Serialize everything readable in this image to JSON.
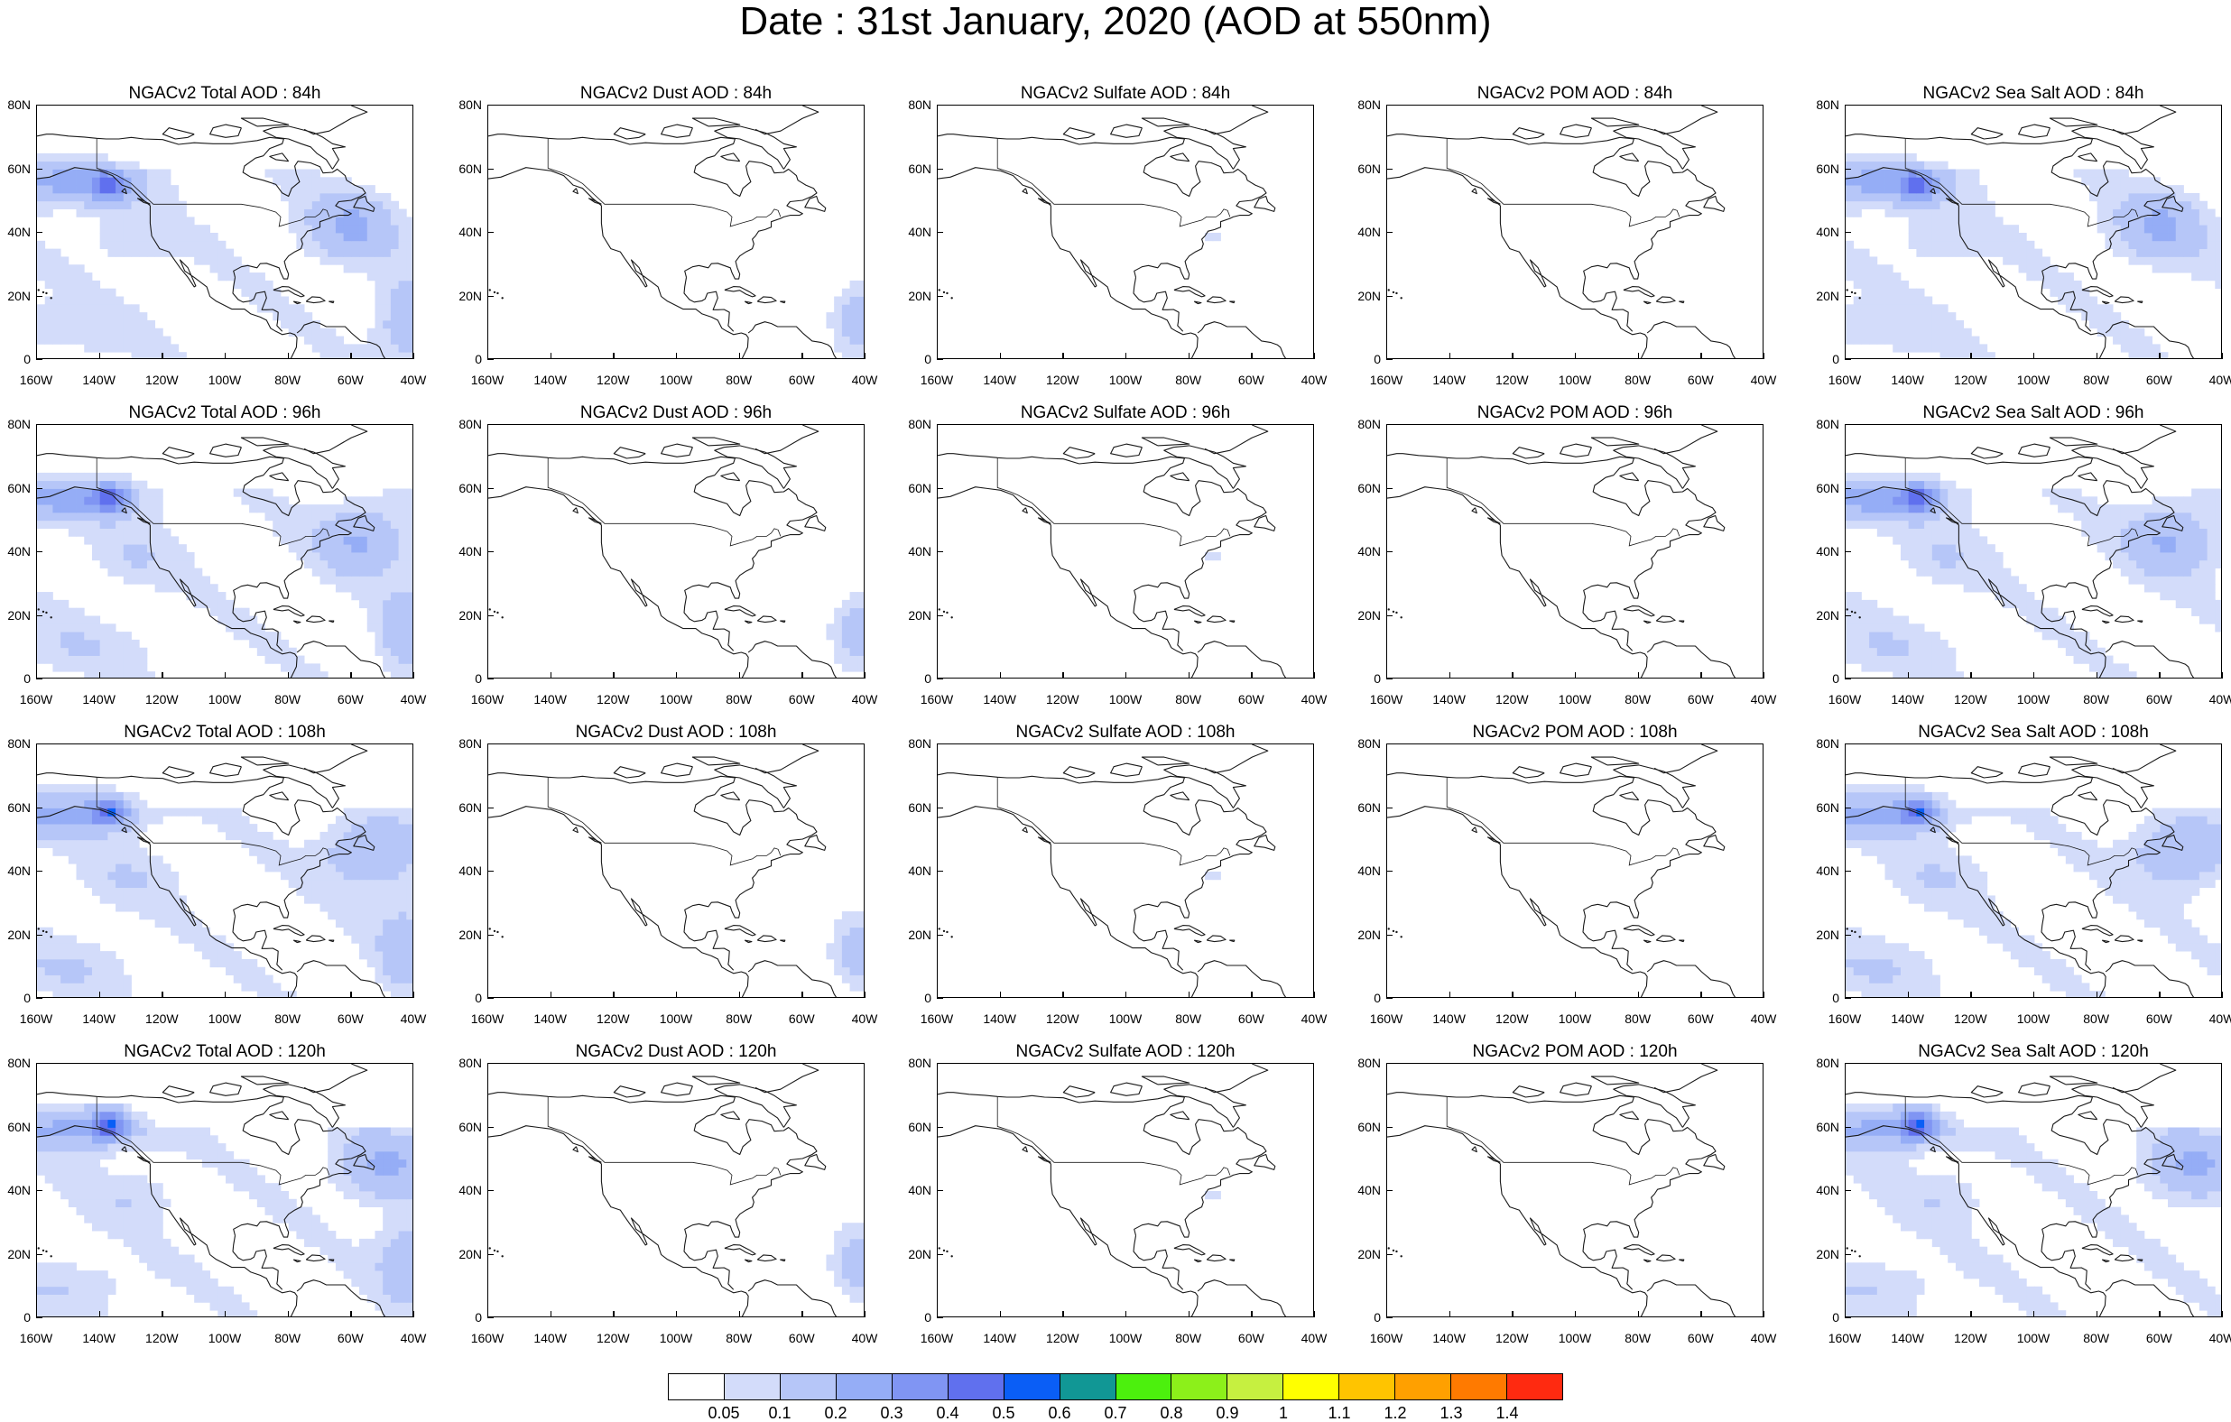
{
  "title": "Date : 31st January, 2020 (AOD at 550nm)",
  "colors": {
    "land_outline": "#1a1a1a",
    "shading": [
      "#ffffff",
      "#d3dcfa",
      "#b6c6f8",
      "#95adf6",
      "#8095f3",
      "#6070ee",
      "#0a5ef6",
      "#119795",
      "#4cf00d",
      "#8cf01a",
      "#c6f040",
      "#ffff00",
      "#ffc400",
      "#ffa000",
      "#ff7a00",
      "#ff2a10"
    ]
  },
  "axes": {
    "y_labels": [
      "80N",
      "60N",
      "40N",
      "20N",
      "0"
    ],
    "x_labels": [
      "160W",
      "140W",
      "120W",
      "100W",
      "80W",
      "60W",
      "40W"
    ],
    "lat_range": [
      0,
      80
    ],
    "lon_range": [
      -160,
      -40
    ]
  },
  "legend": {
    "labels": [
      "0.05",
      "0.1",
      "0.2",
      "0.3",
      "0.4",
      "0.5",
      "0.6",
      "0.7",
      "0.8",
      "0.9",
      "1",
      "1.1",
      "1.2",
      "1.3",
      "1.4"
    ]
  },
  "panels": [
    {
      "title": "NGACv2 Total AOD : 84h",
      "field": "total",
      "hour": 84
    },
    {
      "title": "NGACv2 Dust AOD : 84h",
      "field": "dust",
      "hour": 84
    },
    {
      "title": "NGACv2 Sulfate AOD : 84h",
      "field": "sulfate",
      "hour": 84
    },
    {
      "title": "NGACv2 POM AOD : 84h",
      "field": "pom",
      "hour": 84
    },
    {
      "title": "NGACv2 Sea Salt AOD : 84h",
      "field": "seasalt",
      "hour": 84
    },
    {
      "title": "NGACv2 Total AOD : 96h",
      "field": "total",
      "hour": 96
    },
    {
      "title": "NGACv2 Dust AOD : 96h",
      "field": "dust",
      "hour": 96
    },
    {
      "title": "NGACv2 Sulfate AOD : 96h",
      "field": "sulfate",
      "hour": 96
    },
    {
      "title": "NGACv2 POM AOD : 96h",
      "field": "pom",
      "hour": 96
    },
    {
      "title": "NGACv2 Sea Salt AOD : 96h",
      "field": "seasalt",
      "hour": 96
    },
    {
      "title": "NGACv2 Total AOD : 108h",
      "field": "total",
      "hour": 108
    },
    {
      "title": "NGACv2 Dust AOD : 108h",
      "field": "dust",
      "hour": 108
    },
    {
      "title": "NGACv2 Sulfate AOD : 108h",
      "field": "sulfate",
      "hour": 108
    },
    {
      "title": "NGACv2 POM AOD : 108h",
      "field": "pom",
      "hour": 108
    },
    {
      "title": "NGACv2 Sea Salt AOD : 108h",
      "field": "seasalt",
      "hour": 108
    },
    {
      "title": "NGACv2 Total AOD : 120h",
      "field": "total",
      "hour": 120
    },
    {
      "title": "NGACv2 Dust AOD : 120h",
      "field": "dust",
      "hour": 120
    },
    {
      "title": "NGACv2 Sulfate AOD : 120h",
      "field": "sulfate",
      "hour": 120
    },
    {
      "title": "NGACv2 POM AOD : 120h",
      "field": "pom",
      "hour": 120
    },
    {
      "title": "NGACv2 Sea Salt  AOD : 120h",
      "field": "seasalt",
      "hour": 120
    }
  ]
}
